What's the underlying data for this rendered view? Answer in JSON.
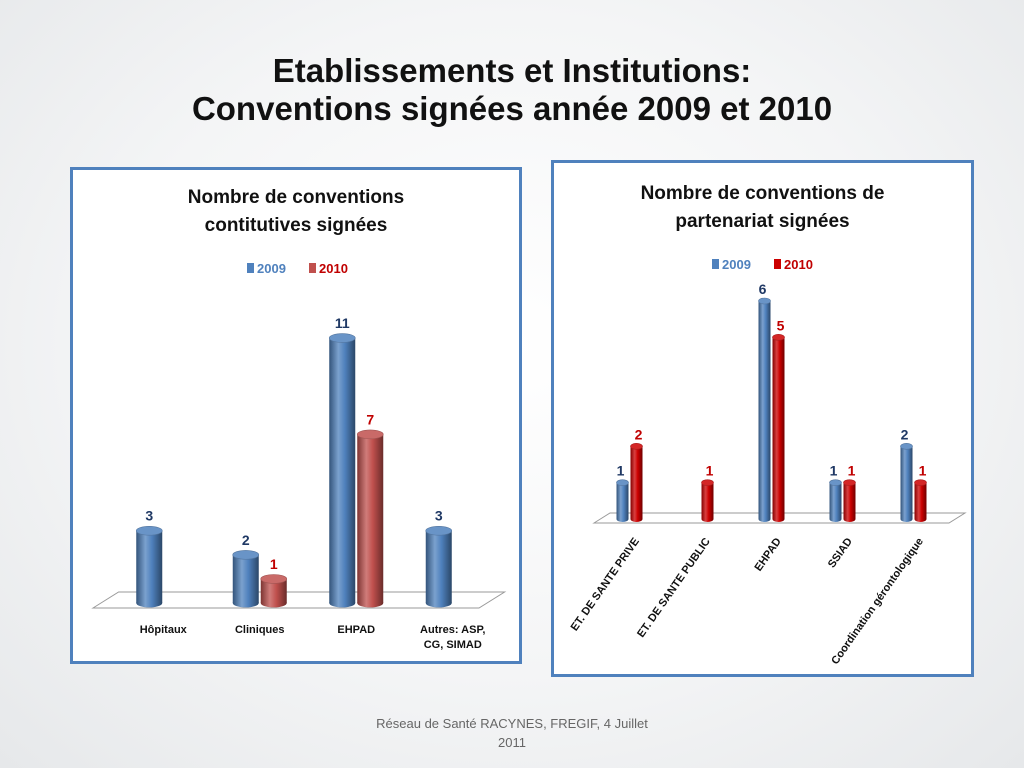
{
  "slide": {
    "title_line1": "Etablissements et Institutions:",
    "title_line2": "Conventions signées année 2009 et 2010",
    "footer_line1": "Réseau de Santé RACYNES, FREGIF, 4 Juillet",
    "footer_line2": "2011"
  },
  "colors": {
    "frame": "#4f81bd",
    "series_2009": "#4f81bd",
    "series_2010_left": "#c0504d",
    "series_2010_right": "#cc0000",
    "label_2009": "#1f3864",
    "label_2010": "#c00000"
  },
  "chart_data": [
    {
      "type": "bar",
      "title_lines": [
        "Nombre de conventions",
        "contitutives signées"
      ],
      "categories": [
        "Hôpitaux",
        "Cliniques",
        "EHPAD",
        "Autres: ASP, CG, SIMAD"
      ],
      "series": [
        {
          "name": "2009",
          "values": [
            3,
            2,
            11,
            3
          ]
        },
        {
          "name": "2010",
          "values": [
            null,
            1,
            7,
            null
          ]
        }
      ],
      "ylim": [
        0,
        11
      ],
      "legend_placement": "top",
      "grid": false
    },
    {
      "type": "bar",
      "title_lines": [
        "Nombre de conventions de",
        "partenariat signées"
      ],
      "categories": [
        "ET. DE SANTE PRIVE",
        "ET. DE SANTE PUBLIC",
        "EHPAD",
        "SSIAD",
        "Coordination gérontologique"
      ],
      "series": [
        {
          "name": "2009",
          "values": [
            1,
            null,
            6,
            1,
            2
          ]
        },
        {
          "name": "2010",
          "values": [
            2,
            1,
            5,
            1,
            1
          ]
        }
      ],
      "ylim": [
        0,
        6
      ],
      "legend_placement": "top",
      "grid": false
    }
  ]
}
